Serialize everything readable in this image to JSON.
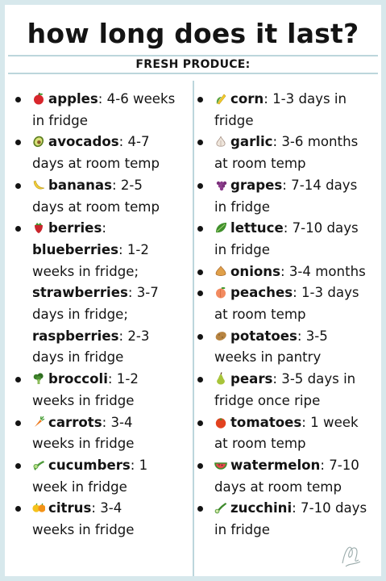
{
  "title": "how long does it last?",
  "subtitle": "FRESH PRODUCE:",
  "left_column": [
    {
      "icon": "apple-icon",
      "name": "apples",
      "lines": [
        ": 4-6 weeks",
        "in fridge"
      ]
    },
    {
      "icon": "avocado-icon",
      "name": "avocados",
      "lines": [
        ": 4-7",
        "days at room temp"
      ]
    },
    {
      "icon": "banana-icon",
      "name": "bananas",
      "lines": [
        ": 2-5",
        "days at room temp"
      ]
    },
    {
      "icon": "berry-icon",
      "name": "berries",
      "lines": [
        ":"
      ]
    },
    {
      "sub": true,
      "name": "blueberries",
      "lines": [
        ": 1-2",
        "weeks in fridge;"
      ]
    },
    {
      "sub": true,
      "name": "strawberries",
      "lines": [
        ": 3-7",
        "days in fridge;"
      ]
    },
    {
      "sub": true,
      "name": "raspberries",
      "lines": [
        ": 2-3",
        "days in fridge"
      ]
    },
    {
      "icon": "broccoli-icon",
      "name": "broccoli",
      "lines": [
        ": 1-2",
        "weeks in fridge"
      ]
    },
    {
      "icon": "carrot-icon",
      "name": "carrots",
      "lines": [
        ": 3-4",
        "weeks in fridge"
      ]
    },
    {
      "icon": "cucumber-icon",
      "name": "cucumbers",
      "lines": [
        ": 1",
        "week in fridge"
      ]
    },
    {
      "icon": "citrus-icon",
      "name": "citrus",
      "lines": [
        ": 3-4",
        "weeks in fridge"
      ]
    }
  ],
  "right_column": [
    {
      "icon": "corn-icon",
      "name": "corn",
      "lines": [
        ": 1-3 days in",
        "fridge"
      ]
    },
    {
      "icon": "garlic-icon",
      "name": "garlic",
      "lines": [
        ": 3-6 months",
        "at room temp"
      ]
    },
    {
      "icon": "grapes-icon",
      "name": "grapes",
      "lines": [
        ": 7-14 days",
        "in fridge"
      ]
    },
    {
      "icon": "lettuce-icon",
      "name": "lettuce",
      "lines": [
        ": 7-10 days",
        "in fridge"
      ]
    },
    {
      "icon": "onion-icon",
      "name": "onions",
      "lines": [
        ": 3-4 months"
      ]
    },
    {
      "icon": "peach-icon",
      "name": "peaches",
      "lines": [
        ": 1-3 days",
        "at room temp"
      ]
    },
    {
      "icon": "potato-icon",
      "name": "potatoes",
      "lines": [
        ": 3-5",
        "weeks in pantry"
      ]
    },
    {
      "icon": "pear-icon",
      "name": "pears",
      "lines": [
        ": 3-5 days in",
        "fridge once ripe"
      ]
    },
    {
      "icon": "tomato-icon",
      "name": "tomatoes",
      "lines": [
        ": 1 week",
        "at room temp"
      ]
    },
    {
      "icon": "watermelon-icon",
      "name": "watermelon",
      "lines": [
        ": 7-10",
        "days at room temp"
      ]
    },
    {
      "icon": "zucchini-icon",
      "name": "zucchini",
      "lines": [
        ": 7-10 days",
        "in fridge"
      ]
    }
  ],
  "colors": {
    "background": "#d7e8ec",
    "card": "#ffffff",
    "divider": "#bcd6dc",
    "text": "#141414"
  }
}
